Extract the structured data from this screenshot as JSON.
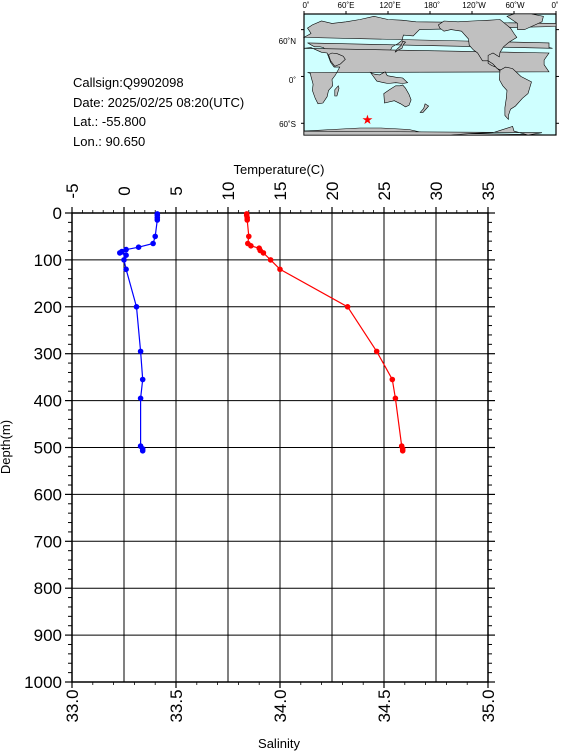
{
  "info": {
    "callsign": "Callsign:Q9902098",
    "date": "Date:  2025/02/25 08:20(UTC)",
    "lat": "Lat.:  -55.800",
    "lon": "Lon.:   90.650"
  },
  "map": {
    "lon_labels": [
      "0˚",
      "60˚E",
      "120˚E",
      "180˚",
      "120˚W",
      "60˚W",
      "0˚"
    ],
    "lat_labels": [
      "60˚N",
      "0˚",
      "60˚S"
    ],
    "station": {
      "lon": 90.65,
      "lat": -55.8
    },
    "ocean_color": "#cfffff",
    "land_color": "#c0c0c0",
    "marker_color": "#ff0000"
  },
  "chart_data": {
    "type": "line",
    "y_axis": {
      "label": "Depth(m)",
      "range": [
        0,
        1000
      ],
      "inverted": true,
      "ticks": [
        0,
        100,
        200,
        300,
        400,
        500,
        600,
        700,
        800,
        900,
        1000
      ]
    },
    "top_axis": {
      "label": "Temperature(C)",
      "range": [
        -5,
        35
      ],
      "ticks": [
        -5,
        0,
        5,
        10,
        15,
        20,
        25,
        30,
        35
      ]
    },
    "bottom_axis": {
      "label": "Salinity",
      "range": [
        33.0,
        35.0
      ],
      "ticks": [
        "33.0",
        "33.5",
        "34.0",
        "34.5",
        "35.0"
      ]
    },
    "grid": true,
    "series": [
      {
        "axis": "temperature",
        "color": "#ff0000",
        "points": [
          [
            11.8,
            2
          ],
          [
            11.8,
            5
          ],
          [
            11.85,
            10
          ],
          [
            11.85,
            15
          ],
          [
            12.0,
            50
          ],
          [
            11.9,
            65
          ],
          [
            12.2,
            70
          ],
          [
            13.0,
            75
          ],
          [
            13.1,
            80
          ],
          [
            13.4,
            85
          ],
          [
            14.1,
            100
          ],
          [
            15.0,
            120
          ],
          [
            21.5,
            200
          ],
          [
            24.3,
            295
          ],
          [
            25.8,
            355
          ],
          [
            26.1,
            395
          ],
          [
            26.7,
            497
          ],
          [
            26.8,
            503
          ],
          [
            26.8,
            507
          ]
        ]
      },
      {
        "axis": "salinity",
        "color": "#0000ff",
        "points": [
          [
            33.41,
            2
          ],
          [
            33.41,
            5
          ],
          [
            33.41,
            10
          ],
          [
            33.41,
            15
          ],
          [
            33.4,
            50
          ],
          [
            33.39,
            65
          ],
          [
            33.32,
            73
          ],
          [
            33.26,
            78
          ],
          [
            33.24,
            82
          ],
          [
            33.23,
            85
          ],
          [
            33.26,
            90
          ],
          [
            33.25,
            100
          ],
          [
            33.26,
            120
          ],
          [
            33.31,
            200
          ],
          [
            33.33,
            295
          ],
          [
            33.34,
            355
          ],
          [
            33.33,
            395
          ],
          [
            33.33,
            497
          ],
          [
            33.34,
            503
          ],
          [
            33.34,
            507
          ]
        ]
      }
    ]
  }
}
